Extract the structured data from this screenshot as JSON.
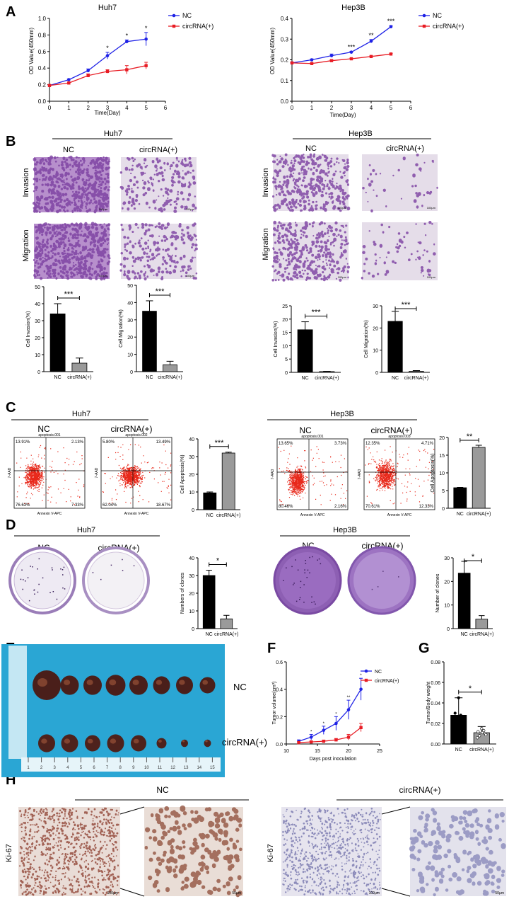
{
  "panels": {
    "A": "A",
    "B": "B",
    "C": "C",
    "D": "D",
    "E": "E",
    "F": "F",
    "G": "G",
    "H": "H"
  },
  "legend": {
    "nc": "NC",
    "circ": "circRNA(+)"
  },
  "colors": {
    "nc": "#1f22e6",
    "circ": "#e81c24",
    "purple": "#7b3fa0",
    "bar_black": "#000000",
    "bar_gray": "#9a9a9a",
    "ihc_brown": "#8a4a2e"
  },
  "panel_a": {
    "huh7": {
      "title": "Huh7",
      "ylabel": "OD Value(450mm)",
      "xlabel": "Time(Day)",
      "yticks": [
        "0.0",
        "0.2",
        "0.4",
        "0.6",
        "0.8",
        "1.0"
      ],
      "xticks": [
        "0",
        "1",
        "2",
        "3",
        "4",
        "5",
        "6"
      ]
    },
    "hep3b": {
      "title": "Hep3B",
      "ylabel": "OD Value(450mm)",
      "xlabel": "Time(Day)",
      "yticks": [
        "0.0",
        "0.1",
        "0.2",
        "0.3",
        "0.4"
      ],
      "xticks": [
        "0",
        "1",
        "2",
        "3",
        "4",
        "5"
      ]
    }
  },
  "panel_b": {
    "huh7": "Huh7",
    "hep3b": "Hep3B",
    "nc": "NC",
    "circ": "circRNA(+)",
    "invasion": "Invasion",
    "migration": "Migration",
    "scale": "100μm",
    "bars": [
      {
        "ylabel": "Cell Invasion(%)",
        "yticks": [
          "0",
          "10",
          "20",
          "30",
          "40",
          "50"
        ],
        "sig": "***"
      },
      {
        "ylabel": "Cell Migration(%)",
        "yticks": [
          "0",
          "10",
          "20",
          "30",
          "40",
          "50"
        ],
        "sig": "***"
      },
      {
        "ylabel": "Cell Invasion(%)",
        "yticks": [
          "0",
          "5",
          "10",
          "15",
          "20",
          "25"
        ],
        "sig": "***"
      },
      {
        "ylabel": "Cell Migration(%)",
        "yticks": [
          "0",
          "10",
          "20",
          "30"
        ],
        "sig": "***"
      }
    ],
    "xcats": [
      "NC",
      "circRNA(+)"
    ]
  },
  "panel_c": {
    "huh7": "Huh7",
    "hep3b": "Hep3B",
    "nc": "NC",
    "circ": "circRNA(+)",
    "xaxis": "Annexin V-APC",
    "yaxis": "7-AAD",
    "flows": [
      {
        "id": "apoptosis.001",
        "q": [
          "13.91%",
          "2.13%",
          "76.63%",
          "7.33%"
        ]
      },
      {
        "id": "apoptosis.002",
        "q": [
          "5.80%",
          "13.49%",
          "62.04%",
          "18.67%"
        ]
      },
      {
        "id": "apoptosis.001",
        "q": [
          "13.65%",
          "3.73%",
          "80.46%",
          "2.16%"
        ]
      },
      {
        "id": "apoptosis.003",
        "q": [
          "12.35%",
          "4.71%",
          "70.61%",
          "12.33%"
        ]
      }
    ],
    "bars": [
      {
        "ylabel": "Cell Apoptosis(%)",
        "yticks": [
          "0",
          "10",
          "20",
          "30",
          "40"
        ],
        "sig": "***"
      },
      {
        "ylabel": "Cell Apoptosis(%)",
        "yticks": [
          "0",
          "5",
          "10",
          "15",
          "20"
        ],
        "sig": "**"
      }
    ],
    "xcats": [
      "NC",
      "circRNA(+)"
    ]
  },
  "panel_d": {
    "huh7": "Huh7",
    "hep3b": "Hep3B",
    "nc": "NC",
    "circ": "circRNA(+)",
    "bars": [
      {
        "ylabel": "Numbers of clones",
        "yticks": [
          "0",
          "10",
          "20",
          "30",
          "40"
        ],
        "sig": "*"
      },
      {
        "ylabel": "Number of clones",
        "yticks": [
          "0",
          "10",
          "20",
          "30"
        ],
        "sig": "*"
      }
    ],
    "xcats": [
      "NC",
      "circRNA(+)"
    ]
  },
  "panel_e": {
    "nc": "NC",
    "circ": "circRNA(+)",
    "ruler": [
      "1",
      "2",
      "3",
      "4",
      "5",
      "6",
      "7",
      "8",
      "9",
      "10",
      "11",
      "12",
      "13",
      "14",
      "15"
    ]
  },
  "panel_f": {
    "ylabel": "Tumor volume(cm³)",
    "xlabel": "Days post inoculation",
    "yticks": [
      "0.0",
      "0.2",
      "0.4",
      "0.6"
    ],
    "xticks": [
      "10",
      "15",
      "20",
      "25"
    ],
    "sig": [
      "*",
      "*",
      "*",
      "**",
      "*"
    ]
  },
  "panel_g": {
    "ylabel": "Tumor/Body weight",
    "yticks": [
      "0.00",
      "0.02",
      "0.04",
      "0.06",
      "0.08"
    ],
    "sig": "*",
    "xcats": [
      "NC",
      "circRNA(+)"
    ]
  },
  "panel_h": {
    "nc": "NC",
    "circ": "circRNA(+)",
    "ki67": "Ki-67",
    "scale100": "100μm",
    "scale50": "50μm"
  },
  "chart_data": [
    {
      "type": "line",
      "title": "Huh7",
      "xlabel": "Time(Day)",
      "ylabel": "OD Value(450mm)",
      "xlim": [
        0,
        6
      ],
      "ylim": [
        0,
        1.0
      ],
      "x": [
        0,
        1,
        2,
        3,
        4,
        5
      ],
      "series": [
        {
          "name": "NC",
          "values": [
            0.19,
            0.26,
            0.37,
            0.55,
            0.72,
            0.75
          ],
          "err": [
            0.01,
            0.01,
            0.02,
            0.04,
            0.02,
            0.08
          ]
        },
        {
          "name": "circRNA(+)",
          "values": [
            0.19,
            0.22,
            0.31,
            0.36,
            0.38,
            0.43
          ],
          "err": [
            0.01,
            0.01,
            0.02,
            0.02,
            0.05,
            0.04
          ]
        }
      ],
      "annotations": [
        "",
        "",
        "",
        "*",
        "*",
        "*"
      ]
    },
    {
      "type": "line",
      "title": "Hep3B",
      "xlabel": "Time(Day)",
      "ylabel": "OD Value(450mm)",
      "xlim": [
        0,
        6
      ],
      "ylim": [
        0,
        0.4
      ],
      "x": [
        0,
        1,
        2,
        3,
        4,
        5
      ],
      "series": [
        {
          "name": "NC",
          "values": [
            0.185,
            0.2,
            0.22,
            0.237,
            0.29,
            0.36
          ],
          "err": [
            0.003,
            0.004,
            0.008,
            0.004,
            0.008,
            0.005
          ]
        },
        {
          "name": "circRNA(+)",
          "values": [
            0.185,
            0.182,
            0.196,
            0.205,
            0.216,
            0.228
          ],
          "err": [
            0.003,
            0.003,
            0.003,
            0.003,
            0.003,
            0.003
          ]
        }
      ],
      "annotations": [
        "",
        "",
        "",
        "***",
        "**",
        "***"
      ]
    },
    {
      "type": "bar",
      "ylabel": "Cell Invasion(%)",
      "categories": [
        "NC",
        "circRNA(+)"
      ],
      "values": [
        34,
        5
      ],
      "err": [
        6,
        3
      ],
      "ylim": [
        0,
        50
      ]
    },
    {
      "type": "bar",
      "ylabel": "Cell Migration(%)",
      "categories": [
        "NC",
        "circRNA(+)"
      ],
      "values": [
        35,
        4
      ],
      "err": [
        6,
        2
      ],
      "ylim": [
        0,
        50
      ]
    },
    {
      "type": "bar",
      "ylabel": "Cell Invasion(%)",
      "categories": [
        "NC",
        "circRNA(+)"
      ],
      "values": [
        16,
        0.3
      ],
      "err": [
        3,
        0.1
      ],
      "ylim": [
        0,
        25
      ]
    },
    {
      "type": "bar",
      "ylabel": "Cell Migration(%)",
      "categories": [
        "NC",
        "circRNA(+)"
      ],
      "values": [
        23,
        0.5
      ],
      "err": [
        4.5,
        0.3
      ],
      "ylim": [
        0,
        30
      ]
    },
    {
      "type": "bar",
      "ylabel": "Cell Apoptosis(%)",
      "categories": [
        "NC",
        "circRNA(+)"
      ],
      "values": [
        9.5,
        32
      ],
      "err": [
        0.5,
        0.5
      ],
      "ylim": [
        0,
        40
      ]
    },
    {
      "type": "bar",
      "ylabel": "Cell Apoptosis(%)",
      "categories": [
        "NC",
        "circRNA(+)"
      ],
      "values": [
        5.8,
        17.2
      ],
      "err": [
        0.1,
        0.6
      ],
      "ylim": [
        0,
        20
      ]
    },
    {
      "type": "bar",
      "ylabel": "Numbers of clones",
      "categories": [
        "NC",
        "circRNA(+)"
      ],
      "values": [
        30,
        5.5
      ],
      "err": [
        3,
        2
      ],
      "ylim": [
        0,
        40
      ]
    },
    {
      "type": "bar",
      "ylabel": "Number of clones",
      "categories": [
        "NC",
        "circRNA(+)"
      ],
      "values": [
        23.5,
        4
      ],
      "err": [
        5,
        1.5
      ],
      "ylim": [
        0,
        30
      ]
    },
    {
      "type": "line",
      "xlabel": "Days post inoculation",
      "ylabel": "Tumor volume(cm³)",
      "xlim": [
        10,
        25
      ],
      "ylim": [
        0,
        0.6
      ],
      "x": [
        12,
        14,
        16,
        18,
        20,
        22
      ],
      "series": [
        {
          "name": "NC",
          "values": [
            0.02,
            0.05,
            0.1,
            0.15,
            0.25,
            0.4
          ],
          "err": [
            0.01,
            0.02,
            0.03,
            0.05,
            0.07,
            0.08
          ]
        },
        {
          "name": "circRNA(+)",
          "values": [
            0.01,
            0.015,
            0.02,
            0.03,
            0.05,
            0.12
          ],
          "err": [
            0.005,
            0.005,
            0.008,
            0.01,
            0.02,
            0.03
          ]
        }
      ]
    },
    {
      "type": "bar",
      "ylabel": "Tumor/Body weight",
      "categories": [
        "NC",
        "circRNA(+)"
      ],
      "values": [
        0.028,
        0.011
      ],
      "err": [
        0.017,
        0.006
      ],
      "ylim": [
        0,
        0.08
      ]
    }
  ]
}
